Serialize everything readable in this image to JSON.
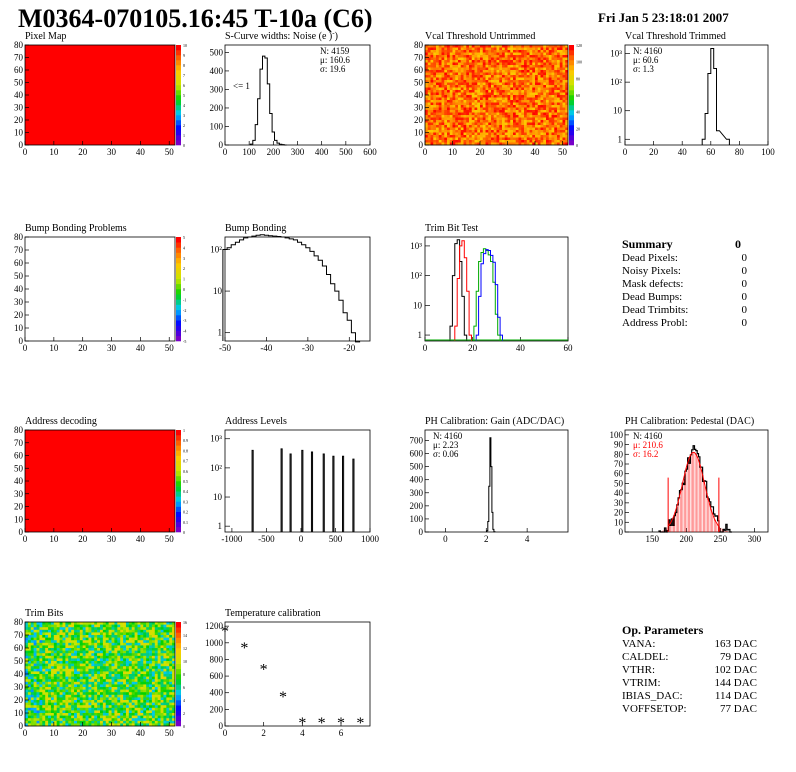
{
  "header": {
    "title": "M0364-070105.16:45 T-10a (C6)",
    "date": "Fri Jan  5 23:18:01 2007"
  },
  "summary": {
    "title": "Summary",
    "value": "0",
    "rows": [
      {
        "label": "Dead Pixels:",
        "value": "0"
      },
      {
        "label": "Noisy Pixels:",
        "value": "0"
      },
      {
        "label": "Mask defects:",
        "value": "0"
      },
      {
        "label": "Dead Bumps:",
        "value": "0"
      },
      {
        "label": "Dead Trimbits:",
        "value": "0"
      },
      {
        "label": "Address Probl:",
        "value": "0"
      }
    ]
  },
  "op_params": {
    "title": "Op. Parameters",
    "rows": [
      {
        "label": "VANA:",
        "value": "163 DAC"
      },
      {
        "label": "CALDEL:",
        "value": "79 DAC"
      },
      {
        "label": "VTHR:",
        "value": "102 DAC"
      },
      {
        "label": "VTRIM:",
        "value": "144 DAC"
      },
      {
        "label": "IBIAS_DAC:",
        "value": "114 DAC"
      },
      {
        "label": "VOFFSETOP:",
        "value": "77 DAC"
      }
    ]
  },
  "chart_data": [
    {
      "id": "pixel-map",
      "type": "heatmap",
      "title": "Pixel Map",
      "fill": "uniform",
      "color": "#ff0000",
      "x_ticks": [
        0,
        10,
        20,
        30,
        40,
        50
      ],
      "y_ticks": [
        0,
        10,
        20,
        30,
        40,
        50,
        60,
        70,
        80
      ],
      "xlim": [
        0,
        52
      ],
      "ylim": [
        0,
        80
      ],
      "palette_ticks": [
        0,
        1,
        2,
        3,
        4,
        5,
        6,
        7,
        8,
        9,
        10
      ]
    },
    {
      "id": "s-curve-widths",
      "type": "histogram",
      "title": "S-Curve widths: Noise (e )",
      "title_super": "-",
      "x_ticks": [
        0,
        100,
        200,
        300,
        400,
        500,
        600
      ],
      "y_ticks": [
        0,
        100,
        200,
        300,
        400,
        500
      ],
      "xlim": [
        0,
        600
      ],
      "ylim": [
        0,
        540
      ],
      "stats": [
        "N: 4159",
        "μ: 160.6",
        "σ: 19.6"
      ],
      "annotation": "<= 1",
      "x": [
        110,
        120,
        130,
        140,
        150,
        160,
        170,
        180,
        190,
        200,
        210,
        220,
        230,
        240,
        250
      ],
      "values": [
        5,
        25,
        110,
        250,
        410,
        480,
        470,
        330,
        170,
        70,
        25,
        10,
        4,
        2,
        0
      ]
    },
    {
      "id": "vcal-untrimmed",
      "type": "heatmap",
      "title": "Vcal Threshold Untrimmed",
      "fill": "noise-hot",
      "x_ticks": [
        0,
        10,
        20,
        30,
        40,
        50
      ],
      "y_ticks": [
        0,
        10,
        20,
        30,
        40,
        50,
        60,
        70,
        80
      ],
      "xlim": [
        0,
        52
      ],
      "ylim": [
        0,
        80
      ],
      "palette_ticks": [
        0,
        20,
        40,
        60,
        80,
        100,
        120
      ]
    },
    {
      "id": "vcal-trimmed",
      "type": "histogram",
      "title": "Vcal Threshold Trimmed",
      "log": true,
      "x_ticks": [
        0,
        20,
        40,
        60,
        80,
        100
      ],
      "y_tick_labels": [
        "1",
        "10",
        "10²",
        "10³"
      ],
      "xlim": [
        0,
        100
      ],
      "stats": [
        "N: 4160",
        "μ: 60.6",
        "σ:  1.3"
      ],
      "x": [
        55,
        57,
        59,
        61,
        63,
        65,
        72
      ],
      "values": [
        1,
        8,
        200,
        1500,
        300,
        2,
        1
      ]
    },
    {
      "id": "bump-bonding-problems",
      "type": "heatmap",
      "title": "Bump Bonding Problems",
      "fill": "empty",
      "x_ticks": [
        0,
        10,
        20,
        30,
        40,
        50
      ],
      "y_ticks": [
        0,
        10,
        20,
        30,
        40,
        50,
        60,
        70,
        80
      ],
      "xlim": [
        0,
        52
      ],
      "ylim": [
        0,
        80
      ],
      "palette_ticks": [
        -5,
        -4,
        -3,
        -2,
        -1,
        0,
        1,
        2,
        3,
        4,
        5
      ]
    },
    {
      "id": "bump-bonding",
      "type": "histogram",
      "title": "Bump Bonding",
      "log": true,
      "x_ticks": [
        -50,
        -40,
        -30,
        -20
      ],
      "y_tick_labels": [
        "1",
        "10",
        "10²"
      ],
      "xlim": [
        -50,
        -15
      ],
      "x": [
        -50,
        -49,
        -48,
        -47,
        -46,
        -45,
        -44,
        -43,
        -42,
        -41,
        -40,
        -39,
        -38,
        -37,
        -36,
        -35,
        -34,
        -33,
        -32,
        -31,
        -30,
        -29,
        -28,
        -27,
        -26,
        -25,
        -24,
        -23,
        -22,
        -21,
        -20,
        -19,
        -18
      ],
      "values": [
        100,
        110,
        130,
        150,
        170,
        190,
        200,
        210,
        220,
        225,
        220,
        215,
        210,
        205,
        200,
        190,
        180,
        170,
        150,
        130,
        110,
        90,
        70,
        55,
        40,
        25,
        15,
        10,
        6,
        3,
        2,
        1,
        0.5
      ]
    },
    {
      "id": "trim-bit-test",
      "type": "histogram",
      "title": "Trim Bit Test",
      "log": true,
      "x_ticks": [
        0,
        20,
        40,
        60
      ],
      "y_tick_labels": [
        "1",
        "10",
        "10²",
        "10³"
      ],
      "xlim": [
        0,
        60
      ],
      "series": [
        {
          "color": "#000000",
          "x": [
            11,
            12,
            13,
            14,
            15,
            16,
            17
          ],
          "values": [
            2,
            100,
            1200,
            1600,
            300,
            20,
            1
          ]
        },
        {
          "color": "#ff0000",
          "x": [
            13,
            14,
            15,
            16,
            17,
            18,
            19
          ],
          "values": [
            2,
            80,
            1000,
            1500,
            400,
            30,
            1
          ]
        },
        {
          "color": "#00aa00",
          "x": [
            21,
            22,
            23,
            24,
            25,
            26,
            27,
            28,
            29,
            30,
            31
          ],
          "values": [
            2,
            30,
            300,
            600,
            800,
            700,
            500,
            300,
            60,
            5,
            1
          ]
        },
        {
          "color": "#0000ff",
          "x": [
            22,
            23,
            24,
            25,
            26,
            27,
            28,
            29,
            30,
            31,
            32
          ],
          "values": [
            1,
            20,
            250,
            550,
            750,
            700,
            480,
            280,
            50,
            4,
            1
          ]
        }
      ]
    },
    {
      "id": "address-decoding",
      "type": "heatmap",
      "title": "Address decoding",
      "fill": "uniform",
      "color": "#ff0000",
      "x_ticks": [
        0,
        10,
        20,
        30,
        40,
        50
      ],
      "y_ticks": [
        0,
        10,
        20,
        30,
        40,
        50,
        60,
        70,
        80
      ],
      "xlim": [
        0,
        52
      ],
      "ylim": [
        0,
        80
      ],
      "palette_ticks": [
        0,
        0.1,
        0.2,
        0.3,
        0.4,
        0.5,
        0.6,
        0.7,
        0.8,
        0.9,
        1
      ]
    },
    {
      "id": "address-levels",
      "type": "histogram",
      "title": "Address Levels",
      "log": true,
      "x_ticks": [
        -1000,
        -500,
        0,
        500,
        1000
      ],
      "y_tick_labels": [
        "1",
        "10",
        "10²",
        "10³"
      ],
      "xlim": [
        -1100,
        1000
      ],
      "peaks": [
        -700,
        -280,
        -150,
        20,
        160,
        330,
        470,
        610,
        760
      ],
      "peak_values": [
        400,
        450,
        300,
        400,
        350,
        300,
        250,
        250,
        200
      ]
    },
    {
      "id": "ph-gain",
      "type": "histogram",
      "title": "PH Calibration: Gain (ADC/DAC)",
      "x_ticks": [
        0,
        2,
        4
      ],
      "y_ticks": [
        0,
        100,
        200,
        300,
        400,
        500,
        600,
        700
      ],
      "xlim": [
        -1,
        6
      ],
      "ylim": [
        0,
        780
      ],
      "stats": [
        "N: 4160",
        "μ: 2.23",
        "σ: 0.06"
      ],
      "x": [
        2.05,
        2.1,
        2.15,
        2.2,
        2.25,
        2.3,
        2.35,
        2.4
      ],
      "values": [
        10,
        80,
        350,
        720,
        500,
        150,
        20,
        2
      ]
    },
    {
      "id": "ph-pedestal",
      "type": "histogram",
      "title": "PH Calibration: Pedestal (DAC)",
      "x_ticks": [
        150,
        200,
        250,
        300
      ],
      "y_ticks": [
        0,
        10,
        20,
        30,
        40,
        50,
        60,
        70,
        80,
        90,
        100
      ],
      "xlim": [
        110,
        320
      ],
      "ylim": [
        0,
        105
      ],
      "stats": [
        "N: 4160",
        "μ: 210.6",
        "σ: 16.2"
      ],
      "fit_color": "#ff0000",
      "mean": 210.6,
      "sigma": 16.2,
      "peak": 82,
      "bins_from": 160,
      "bins_to": 265
    },
    {
      "id": "trim-bits",
      "type": "heatmap",
      "title": "Trim Bits",
      "fill": "noise-green",
      "x_ticks": [
        0,
        10,
        20,
        30,
        40,
        50
      ],
      "y_ticks": [
        0,
        10,
        20,
        30,
        40,
        50,
        60,
        70,
        80
      ],
      "xlim": [
        0,
        52
      ],
      "ylim": [
        0,
        80
      ],
      "palette_ticks": [
        0,
        2,
        4,
        6,
        8,
        10,
        12,
        14,
        16
      ]
    },
    {
      "id": "temperature-calibration",
      "type": "scatter",
      "title": "Temperature calibration",
      "marker": "*",
      "x_ticks": [
        0,
        2,
        4,
        6
      ],
      "y_ticks": [
        0,
        200,
        400,
        600,
        800,
        1000,
        1200
      ],
      "xlim": [
        0,
        7.5
      ],
      "ylim": [
        0,
        1250
      ],
      "x": [
        0,
        1,
        2,
        3,
        4,
        5,
        6,
        7
      ],
      "values": [
        1150,
        950,
        690,
        360,
        50,
        50,
        50,
        50
      ]
    }
  ]
}
